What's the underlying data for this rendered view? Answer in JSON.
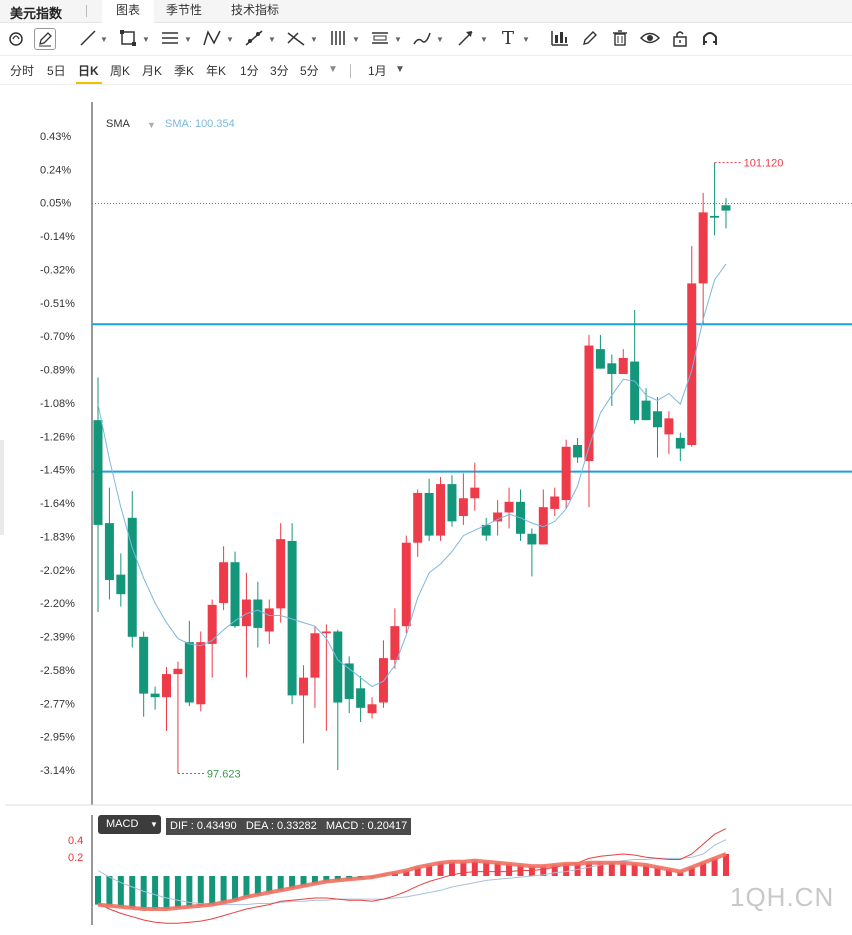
{
  "app": {
    "title": "美元指数"
  },
  "tabs": [
    {
      "label": "图表",
      "active": true
    },
    {
      "label": "季节性",
      "active": false
    },
    {
      "label": "技术指标",
      "active": false
    }
  ],
  "toolbar": {
    "icons": [
      "magnet-icon",
      "pencil-icon",
      "line-icon",
      "rect-icon",
      "parallel-lines-icon",
      "pattern-icon",
      "fib-icon",
      "measure-icon",
      "gann-icon",
      "channel-icon",
      "brush-icon",
      "arrow-icon",
      "text-icon",
      "chart-type-icon",
      "edit-icon",
      "trash-icon",
      "eye-icon",
      "lock-icon",
      "magnet2-icon"
    ]
  },
  "periods": {
    "items": [
      "分时",
      "5日",
      "日K",
      "周K",
      "月K",
      "季K",
      "年K",
      "1分",
      "3分",
      "5分"
    ],
    "active": "日K",
    "range_label": "1月"
  },
  "sma_legend": {
    "label": "SMA",
    "value_text": "SMA: 100.354"
  },
  "price_labels": {
    "high": "101.120",
    "low": "97.623"
  },
  "macd_legend": {
    "label": "MACD",
    "values_text": "DIF : 0.43490   DEA : 0.33282   MACD : 0.20417"
  },
  "macd_axis": {
    "ticks": [
      "0.4",
      "0.2"
    ]
  },
  "watermark": "1QH.CN",
  "colors": {
    "up": "#ee3b4a",
    "down": "#14967a",
    "sma": "#6fb6e0",
    "hline": "#1aa0dc"
  },
  "chart_data": {
    "type": "candlestick",
    "y_axis_ticks": [
      "0.43%",
      "0.24%",
      "0.05%",
      "-0.14%",
      "-0.32%",
      "-0.51%",
      "-0.70%",
      "-0.89%",
      "-1.08%",
      "-1.26%",
      "-1.45%",
      "-1.64%",
      "-1.83%",
      "-2.02%",
      "-2.20%",
      "-2.39%",
      "-2.58%",
      "-2.77%",
      "-2.95%",
      "-3.14%"
    ],
    "ylim": [
      -3.14,
      0.43
    ],
    "horizontal_lines": [
      -0.63,
      -1.46
    ],
    "dotted_line": 0.05,
    "candles": [
      [
        -1.17,
        -1.76,
        -0.93,
        -2.25
      ],
      [
        -1.75,
        -2.07,
        -1.55,
        -2.18
      ],
      [
        -2.04,
        -2.15,
        -1.92,
        -2.22
      ],
      [
        -1.72,
        -2.39,
        -1.57,
        -2.45
      ],
      [
        -2.39,
        -2.71,
        -2.36,
        -2.84
      ],
      [
        -2.71,
        -2.73,
        -2.67,
        -2.8
      ],
      [
        -2.73,
        -2.6,
        -2.56,
        -2.92
      ],
      [
        -2.6,
        -2.57,
        -2.53,
        -3.16
      ],
      [
        -2.42,
        -2.76,
        -2.3,
        -2.78
      ],
      [
        -2.77,
        -2.42,
        -2.36,
        -2.81
      ],
      [
        -2.43,
        -2.21,
        -2.18,
        -2.62
      ],
      [
        -2.2,
        -1.97,
        -1.88,
        -2.24
      ],
      [
        -1.97,
        -2.33,
        -1.91,
        -2.34
      ],
      [
        -2.33,
        -2.18,
        -2.03,
        -2.62
      ],
      [
        -2.18,
        -2.34,
        -2.08,
        -2.45
      ],
      [
        -2.36,
        -2.23,
        -2.18,
        -2.43
      ],
      [
        -2.23,
        -1.84,
        -1.75,
        -2.31
      ],
      [
        -1.85,
        -2.72,
        -1.75,
        -2.77
      ],
      [
        -2.72,
        -2.62,
        -2.55,
        -2.99
      ],
      [
        -2.62,
        -2.37,
        -2.33,
        -2.79
      ],
      [
        -2.37,
        -2.36,
        -2.32,
        -2.92
      ],
      [
        -2.36,
        -2.76,
        -2.35,
        -3.14
      ],
      [
        -2.54,
        -2.74,
        -2.5,
        -2.82
      ],
      [
        -2.68,
        -2.79,
        -2.61,
        -2.87
      ],
      [
        -2.82,
        -2.77,
        -2.73,
        -2.85
      ],
      [
        -2.76,
        -2.51,
        -2.41,
        -2.79
      ],
      [
        -2.52,
        -2.33,
        -2.23,
        -2.57
      ],
      [
        -2.33,
        -1.86,
        -1.82,
        -2.37
      ],
      [
        -1.86,
        -1.58,
        -1.56,
        -1.94
      ],
      [
        -1.58,
        -1.82,
        -1.5,
        -1.85
      ],
      [
        -1.82,
        -1.53,
        -1.49,
        -1.85
      ],
      [
        -1.53,
        -1.74,
        -1.48,
        -1.77
      ],
      [
        -1.71,
        -1.61,
        -1.47,
        -1.76
      ],
      [
        -1.61,
        -1.55,
        -1.41,
        -1.68
      ],
      [
        -1.76,
        -1.82,
        -1.72,
        -1.85
      ],
      [
        -1.74,
        -1.69,
        -1.62,
        -1.82
      ],
      [
        -1.69,
        -1.63,
        -1.55,
        -1.78
      ],
      [
        -1.63,
        -1.81,
        -1.56,
        -1.85
      ],
      [
        -1.81,
        -1.87,
        -1.78,
        -2.05
      ],
      [
        -1.87,
        -1.66,
        -1.56,
        -1.87
      ],
      [
        -1.67,
        -1.6,
        -1.55,
        -1.71
      ],
      [
        -1.62,
        -1.32,
        -1.28,
        -1.67
      ],
      [
        -1.31,
        -1.38,
        -1.27,
        -1.41
      ],
      [
        -1.4,
        -0.75,
        -0.69,
        -1.66
      ],
      [
        -0.77,
        -0.88,
        -0.69,
        -0.88
      ],
      [
        -0.85,
        -0.91,
        -0.8,
        -1.09
      ],
      [
        -0.91,
        -0.82,
        -0.77,
        -0.86
      ],
      [
        -0.84,
        -1.17,
        -0.55,
        -1.19
      ],
      [
        -1.06,
        -1.17,
        -0.99,
        -1.17
      ],
      [
        -1.12,
        -1.21,
        -1.04,
        -1.38
      ],
      [
        -1.25,
        -1.16,
        -1.12,
        -1.36
      ],
      [
        -1.27,
        -1.33,
        -1.24,
        -1.4
      ],
      [
        -1.31,
        -0.4,
        -0.19,
        -1.32
      ],
      [
        -0.4,
        0.0,
        0.11,
        -0.63
      ],
      [
        -0.02,
        -0.03,
        0.28,
        -0.13
      ],
      [
        0.04,
        0.01,
        0.08,
        -0.09
      ]
    ],
    "sma": [
      -1.08,
      -1.39,
      -1.66,
      -1.89,
      -2.06,
      -2.2,
      -2.31,
      -2.4,
      -2.43,
      -2.44,
      -2.41,
      -2.35,
      -2.3,
      -2.26,
      -2.24,
      -2.27,
      -2.27,
      -2.29,
      -2.31,
      -2.33,
      -2.4,
      -2.52,
      -2.57,
      -2.62,
      -2.67,
      -2.64,
      -2.55,
      -2.38,
      -2.17,
      -2.03,
      -1.98,
      -1.91,
      -1.82,
      -1.79,
      -1.76,
      -1.73,
      -1.7,
      -1.72,
      -1.75,
      -1.77,
      -1.74,
      -1.67,
      -1.54,
      -1.32,
      -1.13,
      -1.03,
      -0.94,
      -0.95,
      -1.03,
      -1.06,
      -1.02,
      -1.08,
      -0.89,
      -0.6,
      -0.38,
      -0.29
    ],
    "macd_bars": [
      -0.26,
      -0.27,
      -0.28,
      -0.29,
      -0.3,
      -0.3,
      -0.3,
      -0.29,
      -0.28,
      -0.27,
      -0.26,
      -0.24,
      -0.22,
      -0.19,
      -0.17,
      -0.15,
      -0.13,
      -0.11,
      -0.09,
      -0.07,
      -0.05,
      -0.04,
      -0.03,
      -0.02,
      -0.01,
      0.01,
      0.03,
      0.05,
      0.08,
      0.1,
      0.12,
      0.13,
      0.13,
      0.14,
      0.13,
      0.12,
      0.11,
      0.1,
      0.09,
      0.09,
      0.1,
      0.11,
      0.11,
      0.12,
      0.12,
      0.12,
      0.12,
      0.11,
      0.1,
      0.08,
      0.06,
      0.04,
      0.08,
      0.12,
      0.16,
      0.2
    ],
    "dif": [
      -0.25,
      -0.3,
      -0.34,
      -0.37,
      -0.4,
      -0.42,
      -0.43,
      -0.43,
      -0.42,
      -0.41,
      -0.39,
      -0.36,
      -0.33,
      -0.3,
      -0.28,
      -0.26,
      -0.23,
      -0.22,
      -0.21,
      -0.2,
      -0.2,
      -0.21,
      -0.22,
      -0.22,
      -0.23,
      -0.21,
      -0.18,
      -0.14,
      -0.09,
      -0.05,
      -0.02,
      0.01,
      0.03,
      0.04,
      0.04,
      0.04,
      0.04,
      0.05,
      0.05,
      0.06,
      0.08,
      0.1,
      0.12,
      0.16,
      0.18,
      0.19,
      0.2,
      0.19,
      0.17,
      0.16,
      0.15,
      0.15,
      0.2,
      0.29,
      0.38,
      0.43
    ],
    "dea": [
      0.05,
      -0.01,
      -0.06,
      -0.1,
      -0.14,
      -0.17,
      -0.2,
      -0.22,
      -0.24,
      -0.25,
      -0.26,
      -0.26,
      -0.26,
      -0.26,
      -0.25,
      -0.25,
      -0.24,
      -0.23,
      -0.23,
      -0.22,
      -0.22,
      -0.21,
      -0.21,
      -0.21,
      -0.21,
      -0.21,
      -0.2,
      -0.19,
      -0.17,
      -0.15,
      -0.13,
      -0.1,
      -0.08,
      -0.06,
      -0.04,
      -0.03,
      -0.02,
      -0.01,
      0.0,
      0.01,
      0.03,
      0.04,
      0.06,
      0.08,
      0.1,
      0.12,
      0.14,
      0.15,
      0.15,
      0.16,
      0.16,
      0.16,
      0.17,
      0.2,
      0.28,
      0.33
    ]
  }
}
